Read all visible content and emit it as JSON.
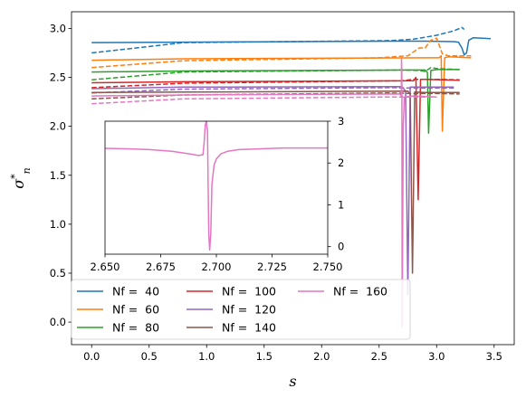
{
  "chart_data": [
    {
      "type": "line",
      "title": "",
      "xlabel": "s",
      "ylabel": "σ*n",
      "xlim": [
        -0.175,
        3.675
      ],
      "ylim": [
        -0.23,
        3.17
      ],
      "xticks": [
        0.0,
        0.5,
        1.0,
        1.5,
        2.0,
        2.5,
        3.0,
        3.5
      ],
      "yticks": [
        0.0,
        0.5,
        1.0,
        1.5,
        2.0,
        2.5,
        3.0
      ],
      "xtick_labels": [
        "0.0",
        "0.5",
        "1.0",
        "1.5",
        "2.0",
        "2.5",
        "3.0",
        "3.5"
      ],
      "ytick_labels": [
        "0.0",
        "0.5",
        "1.0",
        "1.5",
        "2.0",
        "2.5",
        "3.0"
      ],
      "grid": false,
      "legend_position": "lower-left",
      "legend_columns": 3,
      "line_styles": [
        "solid",
        "dashed"
      ],
      "series": [
        {
          "name": "Nf =  40",
          "color": "#1f77b4",
          "solid": [
            [
              0.0,
              2.855
            ],
            [
              0.8,
              2.86
            ],
            [
              2.65,
              2.87
            ],
            [
              2.9,
              2.87
            ],
            [
              3.15,
              2.865
            ],
            [
              3.19,
              2.86
            ],
            [
              3.22,
              2.8
            ],
            [
              3.24,
              2.73
            ],
            [
              3.26,
              2.75
            ],
            [
              3.28,
              2.88
            ],
            [
              3.32,
              2.905
            ],
            [
              3.4,
              2.9
            ],
            [
              3.47,
              2.895
            ]
          ],
          "dashed": [
            [
              0.0,
              2.75
            ],
            [
              0.8,
              2.855
            ],
            [
              2.6,
              2.875
            ],
            [
              2.8,
              2.89
            ],
            [
              3.0,
              2.93
            ],
            [
              3.15,
              2.975
            ],
            [
              3.22,
              3.01
            ],
            [
              3.24,
              2.99
            ]
          ]
        },
        {
          "name": "Nf =  60",
          "color": "#ff7f0e",
          "solid": [
            [
              0.0,
              2.675
            ],
            [
              0.8,
              2.69
            ],
            [
              2.95,
              2.7
            ],
            [
              3.02,
              2.7
            ],
            [
              3.04,
              2.72
            ],
            [
              3.05,
              1.95
            ],
            [
              3.07,
              2.7
            ],
            [
              3.1,
              2.71
            ],
            [
              3.2,
              2.705
            ],
            [
              3.3,
              2.7
            ]
          ],
          "dashed": [
            [
              0.0,
              2.6
            ],
            [
              0.4,
              2.635
            ],
            [
              0.8,
              2.67
            ],
            [
              2.5,
              2.7
            ],
            [
              2.75,
              2.72
            ],
            [
              2.85,
              2.8
            ],
            [
              2.9,
              2.8
            ],
            [
              2.95,
              2.88
            ],
            [
              3.0,
              2.9
            ],
            [
              3.05,
              2.74
            ],
            [
              3.1,
              2.72
            ],
            [
              3.3,
              2.72
            ]
          ]
        },
        {
          "name": "Nf =  80",
          "color": "#2ca02c",
          "solid": [
            [
              0.0,
              2.555
            ],
            [
              0.8,
              2.565
            ],
            [
              2.8,
              2.575
            ],
            [
              2.9,
              2.575
            ],
            [
              2.92,
              2.55
            ],
            [
              2.93,
              1.93
            ],
            [
              2.95,
              2.57
            ],
            [
              3.0,
              2.58
            ],
            [
              3.2,
              2.58
            ]
          ],
          "dashed": [
            [
              0.0,
              2.475
            ],
            [
              0.8,
              2.555
            ],
            [
              2.7,
              2.575
            ],
            [
              2.85,
              2.57
            ],
            [
              2.9,
              2.56
            ],
            [
              2.95,
              2.6
            ],
            [
              3.0,
              2.59
            ],
            [
              3.2,
              2.58
            ]
          ]
        },
        {
          "name": "Nf =  100",
          "color": "#d62728",
          "solid": [
            [
              0.0,
              2.445
            ],
            [
              0.8,
              2.455
            ],
            [
              2.8,
              2.465
            ],
            [
              2.82,
              2.5
            ],
            [
              2.84,
              1.25
            ],
            [
              2.86,
              2.48
            ],
            [
              2.9,
              2.48
            ],
            [
              3.2,
              2.47
            ]
          ],
          "dashed": [
            [
              0.0,
              2.395
            ],
            [
              0.8,
              2.44
            ],
            [
              2.7,
              2.465
            ],
            [
              2.8,
              2.48
            ],
            [
              3.0,
              2.48
            ],
            [
              3.2,
              2.475
            ]
          ]
        },
        {
          "name": "Nf =  120",
          "color": "#9467bd",
          "solid": [
            [
              0.0,
              2.385
            ],
            [
              0.8,
              2.4
            ],
            [
              2.7,
              2.405
            ],
            [
              2.73,
              2.36
            ],
            [
              2.75,
              0.28
            ],
            [
              2.77,
              2.4
            ],
            [
              2.9,
              2.4
            ],
            [
              3.15,
              2.4
            ]
          ],
          "dashed": [
            [
              0.0,
              2.34
            ],
            [
              0.8,
              2.38
            ],
            [
              2.6,
              2.395
            ],
            [
              2.8,
              2.39
            ],
            [
              3.0,
              2.39
            ],
            [
              3.15,
              2.39
            ]
          ]
        },
        {
          "name": "Nf =  140",
          "color": "#8c564b",
          "solid": [
            [
              0.0,
              2.345
            ],
            [
              0.8,
              2.35
            ],
            [
              2.75,
              2.36
            ],
            [
              2.77,
              2.33
            ],
            [
              2.79,
              0.5
            ],
            [
              2.81,
              2.35
            ],
            [
              2.9,
              2.345
            ],
            [
              3.2,
              2.345
            ]
          ],
          "dashed": [
            [
              0.0,
              2.28
            ],
            [
              0.8,
              2.32
            ],
            [
              2.6,
              2.34
            ],
            [
              2.8,
              2.335
            ],
            [
              3.0,
              2.335
            ],
            [
              3.2,
              2.33
            ]
          ]
        },
        {
          "name": "Nf =  160",
          "color": "#e377c2",
          "solid": [
            [
              0.0,
              2.31
            ],
            [
              0.8,
              2.32
            ],
            [
              2.68,
              2.33
            ],
            [
              2.69,
              2.32
            ],
            [
              2.693,
              2.3
            ],
            [
              2.695,
              2.7
            ],
            [
              2.698,
              2.5
            ],
            [
              2.7,
              -0.05
            ],
            [
              2.71,
              2.0
            ],
            [
              2.72,
              2.3
            ],
            [
              2.8,
              2.31
            ],
            [
              3.0,
              2.3
            ]
          ],
          "dashed": [
            [
              0.0,
              2.23
            ],
            [
              0.8,
              2.28
            ],
            [
              2.6,
              2.3
            ],
            [
              2.8,
              2.3
            ],
            [
              3.0,
              2.3
            ]
          ]
        }
      ]
    },
    {
      "type": "line",
      "title": "",
      "xlim": [
        2.65,
        2.75
      ],
      "ylim": [
        -0.18,
        3.0
      ],
      "xticks": [
        2.65,
        2.675,
        2.7,
        2.725,
        2.75
      ],
      "yticks": [
        0,
        1,
        2,
        3
      ],
      "xtick_labels": [
        "2.650",
        "2.675",
        "2.700",
        "2.725",
        "2.750"
      ],
      "ytick_labels": [
        "0",
        "1",
        "2",
        "3"
      ],
      "y_axis_side": "right",
      "series": [
        {
          "name": "Nf =  160",
          "color": "#e377c2",
          "points": [
            [
              2.65,
              2.35
            ],
            [
              2.66,
              2.34
            ],
            [
              2.67,
              2.32
            ],
            [
              2.68,
              2.28
            ],
            [
              2.688,
              2.22
            ],
            [
              2.692,
              2.18
            ],
            [
              2.694,
              2.2
            ],
            [
              2.6945,
              2.5
            ],
            [
              2.695,
              2.9
            ],
            [
              2.6955,
              3.0
            ],
            [
              2.696,
              2.75
            ],
            [
              2.6963,
              1.5
            ],
            [
              2.6966,
              0.3
            ],
            [
              2.697,
              -0.08
            ],
            [
              2.6975,
              0.3
            ],
            [
              2.698,
              1.5
            ],
            [
              2.699,
              1.95
            ],
            [
              2.7,
              2.1
            ],
            [
              2.702,
              2.22
            ],
            [
              2.705,
              2.28
            ],
            [
              2.71,
              2.32
            ],
            [
              2.72,
              2.34
            ],
            [
              2.73,
              2.36
            ],
            [
              2.74,
              2.36
            ],
            [
              2.75,
              2.36
            ]
          ]
        }
      ]
    }
  ]
}
